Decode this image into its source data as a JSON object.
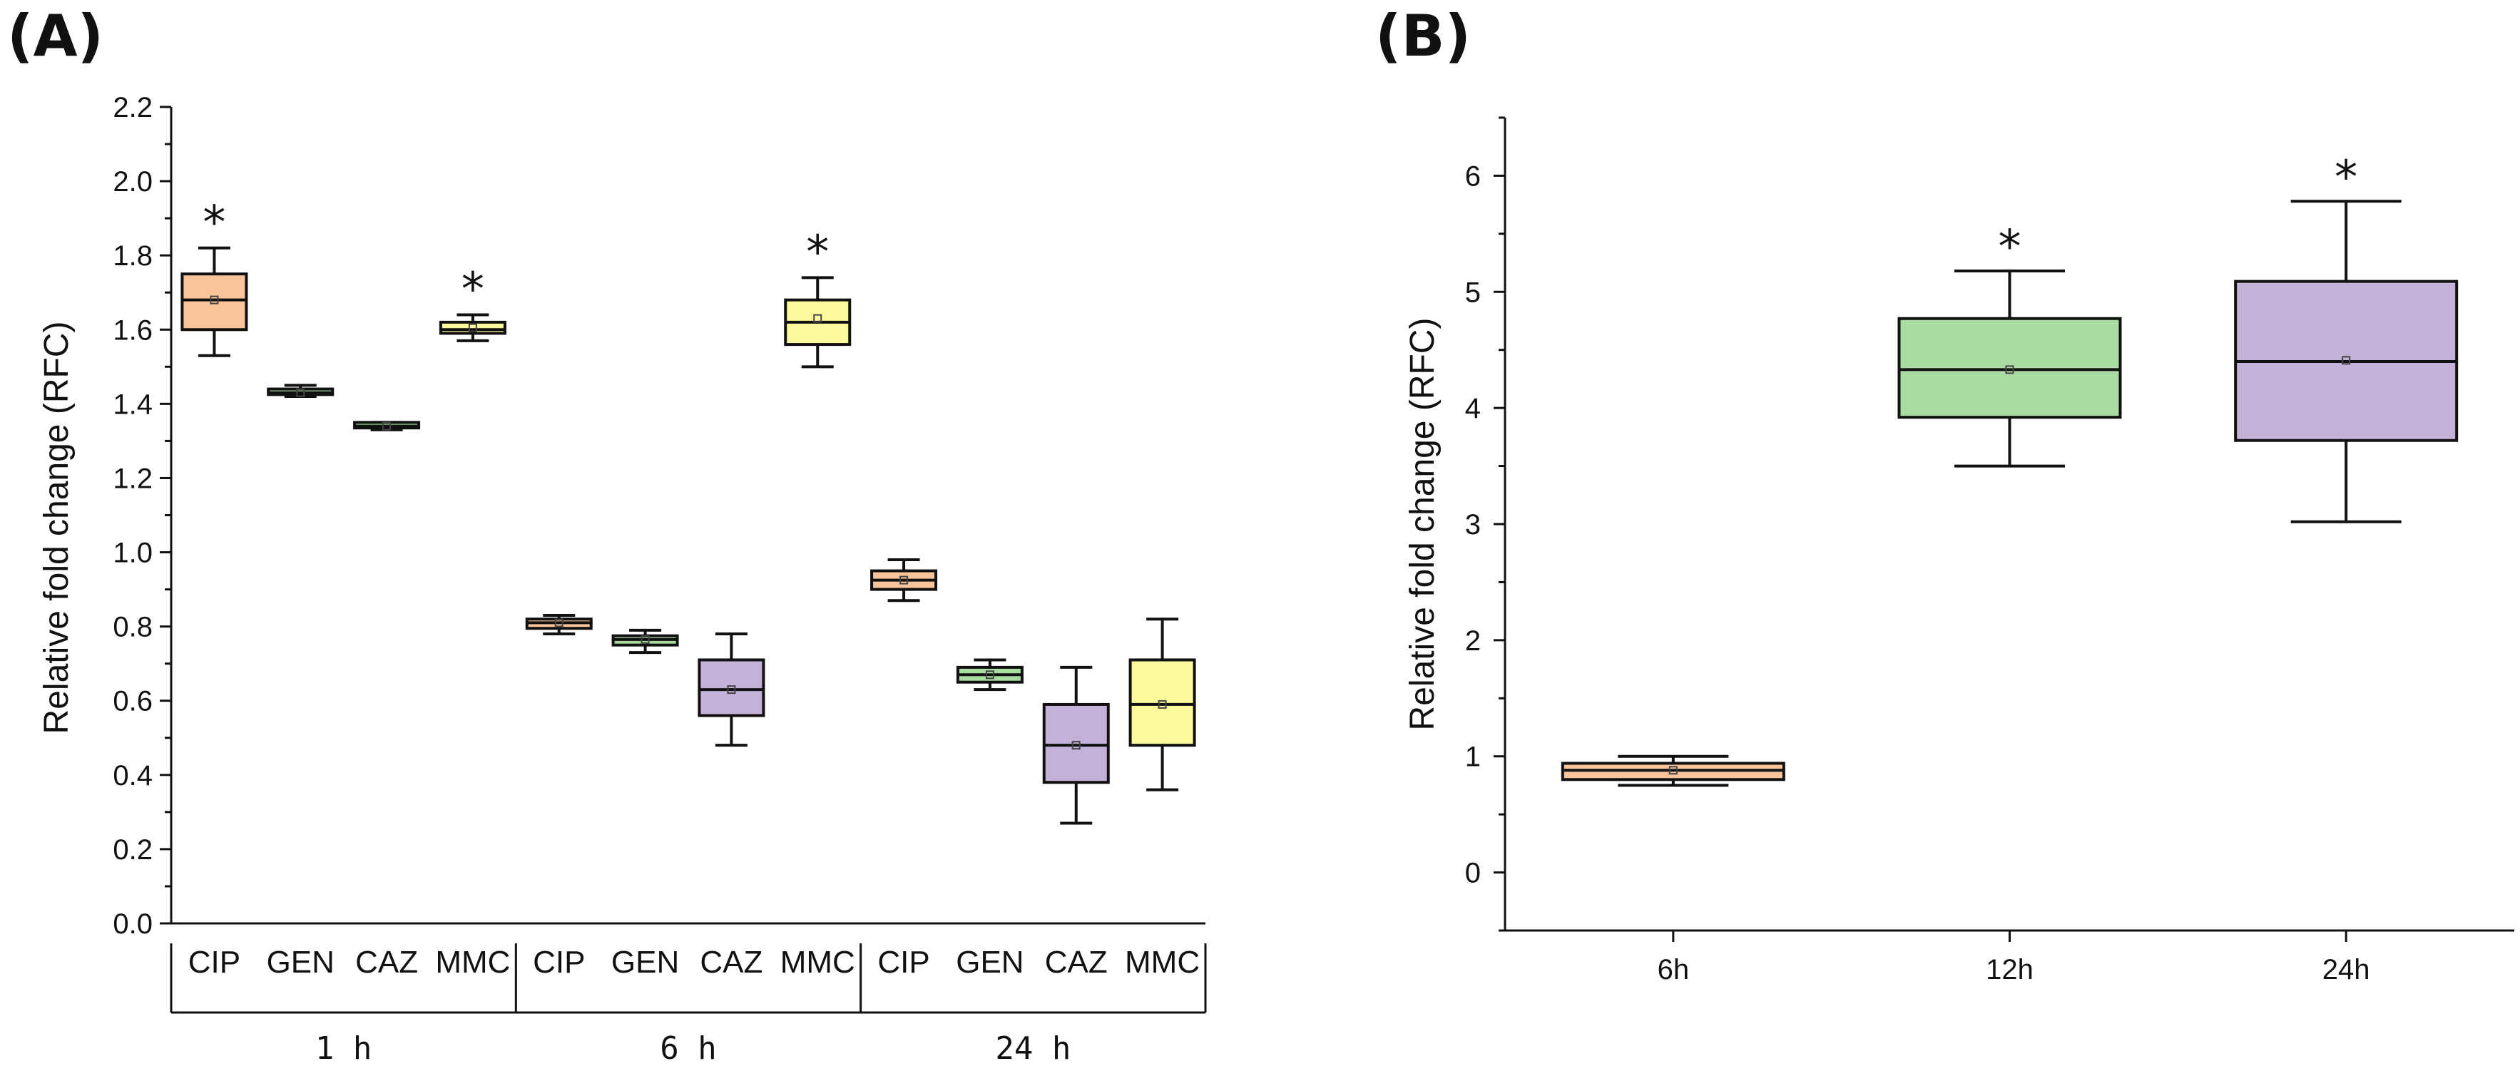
{
  "chart_data": [
    {
      "panel": "(A)",
      "type": "box",
      "ylabel": "Relative fold change (RFC)",
      "ylim": [
        0.0,
        2.2
      ],
      "yticks": [
        "0.0",
        "0.2",
        "0.4",
        "0.6",
        "0.8",
        "1.0",
        "1.2",
        "1.4",
        "1.6",
        "1.8",
        "2.0",
        "2.2"
      ],
      "groups": [
        {
          "label": "1 h",
          "categories": [
            "CIP",
            "GEN",
            "CAZ",
            "MMC"
          ]
        },
        {
          "label": "6 h",
          "categories": [
            "CIP",
            "GEN",
            "CAZ",
            "MMC"
          ]
        },
        {
          "label": "24 h",
          "categories": [
            "CIP",
            "GEN",
            "CAZ",
            "MMC"
          ]
        }
      ],
      "boxes": [
        {
          "group": "1 h",
          "category": "CIP",
          "min": 1.53,
          "q1": 1.6,
          "median": 1.68,
          "mean": 1.68,
          "q3": 1.75,
          "max": 1.82,
          "significant": true,
          "color": "#f9c49a"
        },
        {
          "group": "1 h",
          "category": "GEN",
          "min": 1.42,
          "q1": 1.425,
          "median": 1.43,
          "mean": 1.43,
          "q3": 1.44,
          "max": 1.45,
          "significant": false,
          "color": "#a8dca0"
        },
        {
          "group": "1 h",
          "category": "CAZ",
          "min": 1.33,
          "q1": 1.335,
          "median": 1.34,
          "mean": 1.34,
          "q3": 1.35,
          "max": 1.35,
          "significant": false,
          "color": "#a8dca0"
        },
        {
          "group": "1 h",
          "category": "MMC",
          "min": 1.57,
          "q1": 1.59,
          "median": 1.6,
          "mean": 1.605,
          "q3": 1.62,
          "max": 1.64,
          "significant": true,
          "color": "#fafa9c"
        },
        {
          "group": "6 h",
          "category": "CIP",
          "min": 0.78,
          "q1": 0.795,
          "median": 0.81,
          "mean": 0.81,
          "q3": 0.82,
          "max": 0.83,
          "significant": false,
          "color": "#f9c49a"
        },
        {
          "group": "6 h",
          "category": "GEN",
          "min": 0.73,
          "q1": 0.75,
          "median": 0.765,
          "mean": 0.765,
          "q3": 0.775,
          "max": 0.79,
          "significant": false,
          "color": "#a8dca0"
        },
        {
          "group": "6 h",
          "category": "CAZ",
          "min": 0.48,
          "q1": 0.56,
          "median": 0.63,
          "mean": 0.63,
          "q3": 0.71,
          "max": 0.78,
          "significant": false,
          "color": "#c3b1d8"
        },
        {
          "group": "6 h",
          "category": "MMC",
          "min": 1.5,
          "q1": 1.56,
          "median": 1.62,
          "mean": 1.63,
          "q3": 1.68,
          "max": 1.74,
          "significant": true,
          "color": "#fafa9c"
        },
        {
          "group": "24 h",
          "category": "CIP",
          "min": 0.87,
          "q1": 0.9,
          "median": 0.925,
          "mean": 0.925,
          "q3": 0.95,
          "max": 0.98,
          "significant": false,
          "color": "#f9c49a"
        },
        {
          "group": "24 h",
          "category": "GEN",
          "min": 0.63,
          "q1": 0.65,
          "median": 0.67,
          "mean": 0.67,
          "q3": 0.69,
          "max": 0.71,
          "significant": false,
          "color": "#a8dca0"
        },
        {
          "group": "24 h",
          "category": "CAZ",
          "min": 0.27,
          "q1": 0.38,
          "median": 0.48,
          "mean": 0.48,
          "q3": 0.59,
          "max": 0.69,
          "significant": false,
          "color": "#c3b1d8"
        },
        {
          "group": "24 h",
          "category": "MMC",
          "min": 0.36,
          "q1": 0.48,
          "median": 0.59,
          "mean": 0.59,
          "q3": 0.71,
          "max": 0.82,
          "significant": false,
          "color": "#fafa9c"
        }
      ]
    },
    {
      "panel": "(B)",
      "type": "box",
      "ylabel": "Relative fold change (RFC)",
      "ylim": [
        -0.5,
        6.5
      ],
      "yticks": [
        "0",
        "1",
        "2",
        "3",
        "4",
        "5",
        "6"
      ],
      "categories": [
        "6h",
        "12h",
        "24h"
      ],
      "boxes": [
        {
          "category": "6h",
          "min": 0.75,
          "q1": 0.8,
          "median": 0.88,
          "mean": 0.88,
          "q3": 0.94,
          "max": 1.0,
          "significant": false,
          "color": "#f9c49a"
        },
        {
          "category": "12h",
          "min": 3.5,
          "q1": 3.92,
          "median": 4.33,
          "mean": 4.33,
          "q3": 4.77,
          "max": 5.18,
          "significant": true,
          "color": "#a8dca0"
        },
        {
          "category": "24h",
          "min": 3.02,
          "q1": 3.72,
          "median": 4.4,
          "mean": 4.41,
          "q3": 5.09,
          "max": 5.78,
          "significant": true,
          "color": "#c3b1d8"
        }
      ]
    }
  ],
  "significance_marker": "*"
}
